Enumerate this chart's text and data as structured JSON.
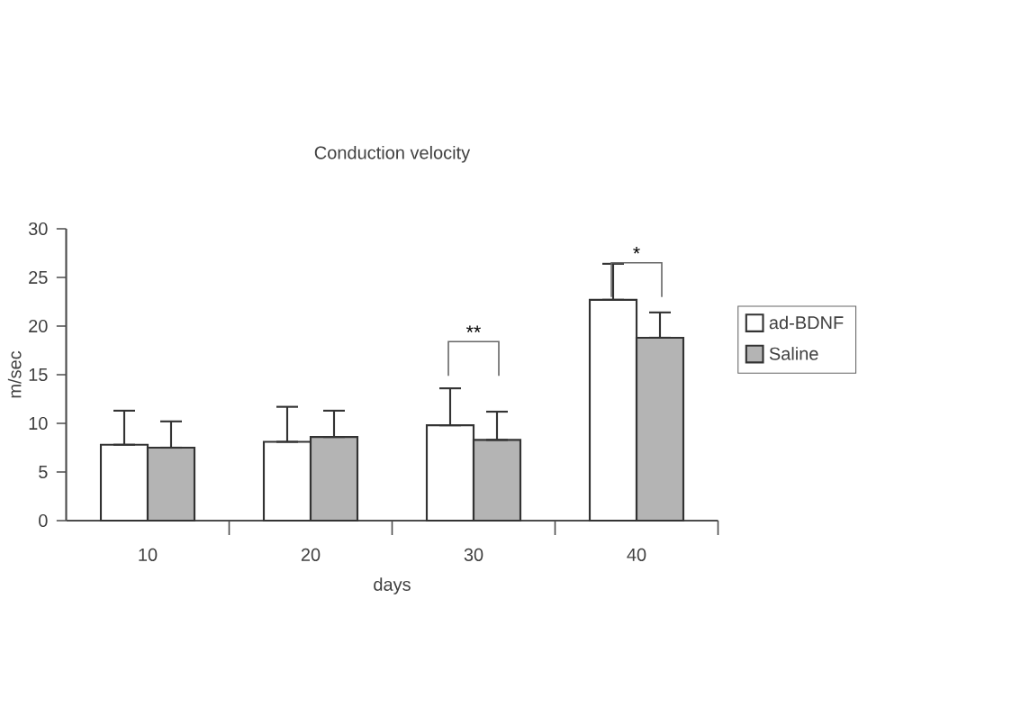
{
  "chart_data": {
    "type": "bar",
    "title": "Conduction velocity",
    "xlabel": "days",
    "ylabel": "m/sec",
    "categories": [
      "10",
      "20",
      "30",
      "40"
    ],
    "series": [
      {
        "name": "ad-BDNF",
        "color": "#ffffff",
        "values": [
          7.8,
          8.1,
          9.8,
          22.7
        ],
        "errors": [
          [
            7.8,
            11.3
          ],
          [
            8.1,
            11.7
          ],
          [
            9.8,
            13.6
          ],
          [
            22.7,
            26.4
          ]
        ]
      },
      {
        "name": "Saline",
        "color": "#b4b4b4",
        "values": [
          7.5,
          8.6,
          8.3,
          18.8
        ],
        "errors": [
          [
            7.5,
            10.2
          ],
          [
            8.6,
            11.3
          ],
          [
            8.3,
            11.2
          ],
          [
            18.8,
            21.4
          ]
        ]
      }
    ],
    "ylim": [
      0,
      30
    ],
    "yticks": [
      0,
      5,
      10,
      15,
      20,
      25,
      30
    ],
    "annotations": [
      "**",
      "*"
    ],
    "legend": "right",
    "grid": false
  }
}
